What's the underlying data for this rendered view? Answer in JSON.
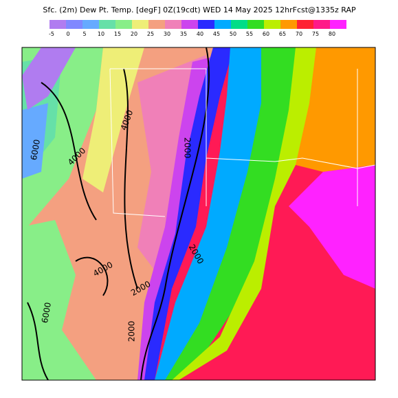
{
  "header": {
    "title": "Sfc. (2m) Dew Pt. Temp. [degF] 0Z(19cdt) WED 14 May 2025 12hrFcst@1335z RAP"
  },
  "legend": [
    {
      "value": -5,
      "color": "#b07cf0"
    },
    {
      "value": 0,
      "color": "#8088ff"
    },
    {
      "value": 5,
      "color": "#66aaff"
    },
    {
      "value": 10,
      "color": "#66e0a8"
    },
    {
      "value": 15,
      "color": "#88ee88"
    },
    {
      "value": 20,
      "color": "#eeee77"
    },
    {
      "value": 25,
      "color": "#f4a080"
    },
    {
      "value": 30,
      "color": "#f080b8"
    },
    {
      "value": 35,
      "color": "#cc44ee"
    },
    {
      "value": 40,
      "color": "#2a2aff"
    },
    {
      "value": 45,
      "color": "#00aaff"
    },
    {
      "value": 50,
      "color": "#00dd88"
    },
    {
      "value": 55,
      "color": "#33dd22"
    },
    {
      "value": 60,
      "color": "#bbee00"
    },
    {
      "value": 65,
      "color": "#ff9900"
    },
    {
      "value": 70,
      "color": "#ff2233"
    },
    {
      "value": 75,
      "color": "#ff1a88"
    },
    {
      "value": 80,
      "color": "#ff22ff"
    }
  ],
  "contour_labels": [
    "4000",
    "6000",
    "4000",
    "2000",
    "2000",
    "4000",
    "2000",
    "2000",
    "6000"
  ]
}
